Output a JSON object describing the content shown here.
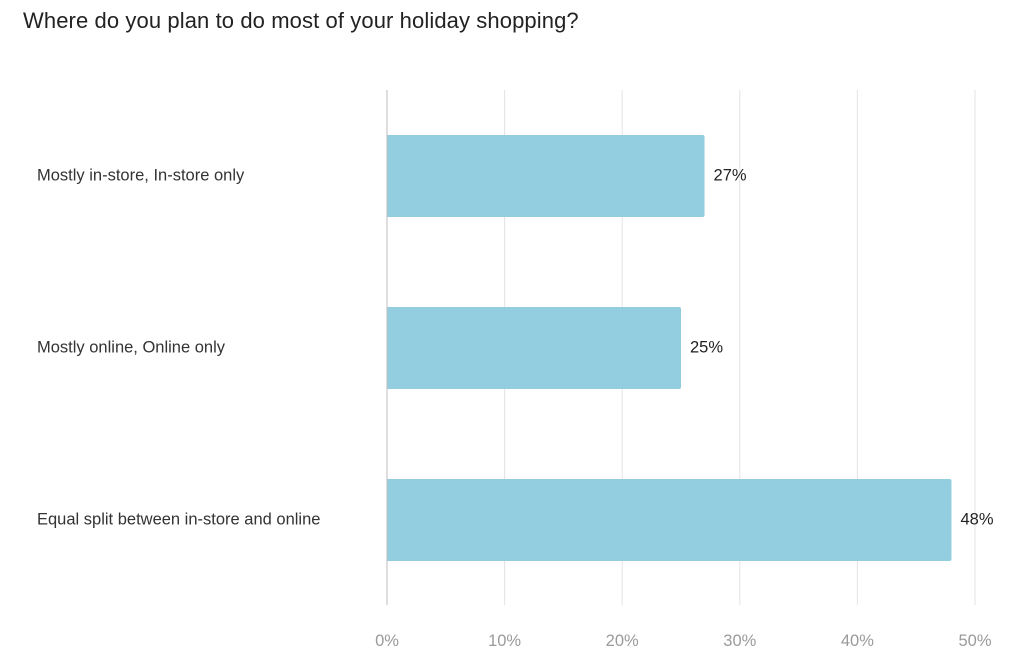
{
  "chart_data": {
    "type": "bar",
    "orientation": "horizontal",
    "title": "Where do you plan to do most of your holiday shopping?",
    "categories": [
      "Mostly in-store, In-store only",
      "Mostly online, Online only",
      "Equal split between in-store and online"
    ],
    "values": [
      27,
      25,
      48
    ],
    "value_labels": [
      "27%",
      "25%",
      "48%"
    ],
    "xlim": [
      0,
      50
    ],
    "xticks": [
      0,
      10,
      20,
      30,
      40,
      50
    ],
    "xtick_labels": [
      "0%",
      "10%",
      "20%",
      "30%",
      "40%",
      "50%"
    ],
    "grid": true,
    "bar_color": "#93cde0",
    "grid_color": "#e3e3e3",
    "axis_color": "#bdbdbd"
  }
}
